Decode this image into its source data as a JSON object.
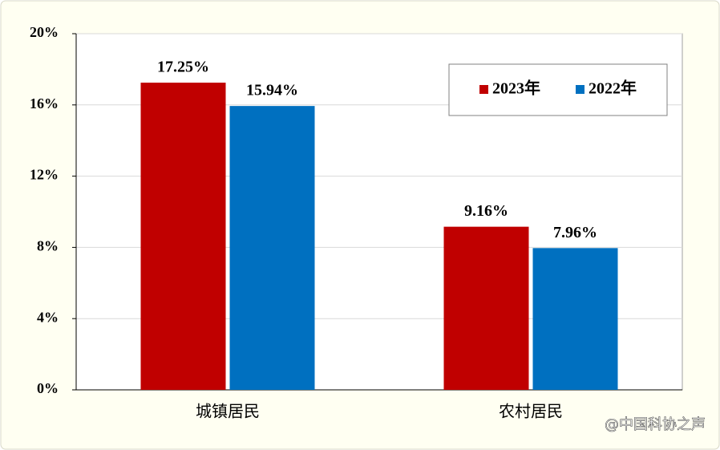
{
  "chart_data": {
    "type": "bar",
    "categories": [
      "城镇居民",
      "农村居民"
    ],
    "series": [
      {
        "name": "2023年",
        "color": "#c00000",
        "values": [
          17.25,
          9.16
        ],
        "value_labels": [
          "17.25%",
          "9.16%"
        ]
      },
      {
        "name": "2022年",
        "color": "#0070c0",
        "values": [
          15.94,
          7.96
        ],
        "value_labels": [
          "15.94%",
          "7.96%"
        ]
      }
    ],
    "ylim": [
      0,
      20
    ],
    "yticks": [
      {
        "value": 0,
        "label": "0%"
      },
      {
        "value": 4,
        "label": "4%"
      },
      {
        "value": 8,
        "label": "8%"
      },
      {
        "value": 12,
        "label": "12%"
      },
      {
        "value": 16,
        "label": "16%"
      },
      {
        "value": 20,
        "label": "20%"
      }
    ],
    "grid": true,
    "legend": "upper right",
    "watermark": "@中国科协之声"
  }
}
